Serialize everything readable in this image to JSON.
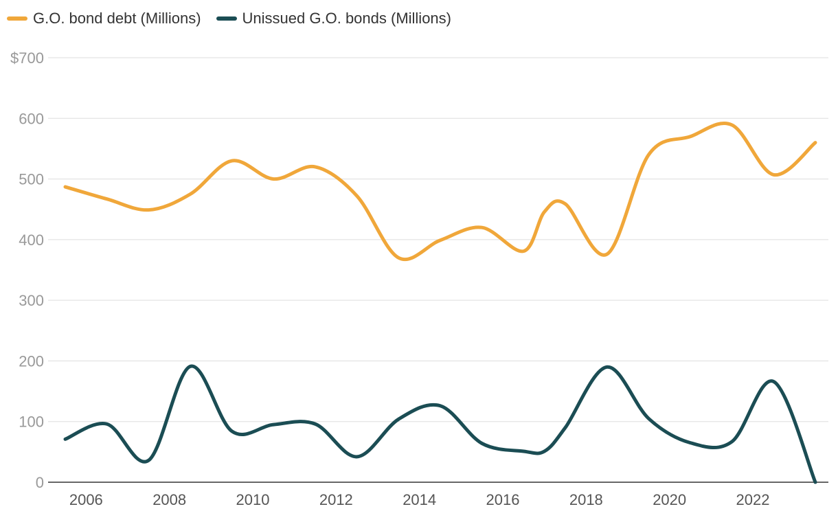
{
  "chart_data": {
    "type": "line",
    "title": "",
    "xlabel": "",
    "ylabel": "",
    "y_tick_labels": [
      "0",
      "100",
      "200",
      "300",
      "400",
      "500",
      "600",
      "$700"
    ],
    "y_ticks": [
      0,
      100,
      200,
      300,
      400,
      500,
      600,
      700
    ],
    "ylim": [
      0,
      700
    ],
    "x_tick_labels": [
      "2006",
      "2008",
      "2010",
      "2012",
      "2014",
      "2016",
      "2018",
      "2020",
      "2022"
    ],
    "x_ticks": [
      2006,
      2008,
      2010,
      2012,
      2014,
      2016,
      2018,
      2020,
      2022
    ],
    "xlim": [
      2005.5,
      2023.5
    ],
    "grid": true,
    "legend_position": "top-left",
    "series": [
      {
        "name": "G.O. bond debt (Millions)",
        "color": "#f0a73a",
        "x": [
          2005.5,
          2006.5,
          2007.5,
          2008.5,
          2009.5,
          2010.5,
          2011.5,
          2012.5,
          2013.5,
          2014.5,
          2015.5,
          2016.5,
          2017.0,
          2017.5,
          2018.5,
          2019.5,
          2020.5,
          2021.5,
          2022.5,
          2023.5
        ],
        "values": [
          487,
          467,
          449,
          475,
          530,
          500,
          520,
          472,
          370,
          399,
          420,
          381,
          446,
          459,
          376,
          540,
          570,
          589,
          507,
          560
        ]
      },
      {
        "name": "Unissued G.O. bonds (Millions)",
        "color": "#1b4d54",
        "x": [
          2005.5,
          2006.5,
          2007.5,
          2008.5,
          2009.5,
          2010.5,
          2011.5,
          2012.5,
          2013.5,
          2014.5,
          2015.5,
          2016.5,
          2017.0,
          2017.5,
          2018.5,
          2019.5,
          2020.5,
          2021.5,
          2022.5,
          2023.5
        ],
        "values": [
          71,
          96,
          36,
          191,
          84,
          95,
          96,
          42,
          104,
          126,
          64,
          51,
          51,
          90,
          190,
          105,
          65,
          67,
          166,
          0
        ]
      }
    ]
  }
}
